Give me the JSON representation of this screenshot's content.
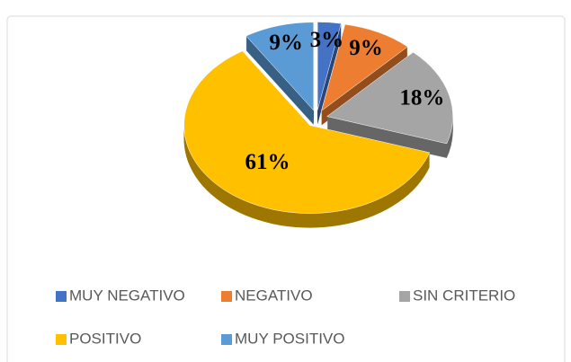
{
  "chart_data": {
    "type": "pie",
    "categories": [
      "MUY NEGATIVO",
      "NEGATIVO",
      "SIN CRITERIO",
      "POSITIVO",
      "MUY POSITIVO"
    ],
    "values": [
      3,
      9,
      18,
      61,
      9
    ],
    "value_labels": [
      "3%",
      "9%",
      "18%",
      "61%",
      "9%"
    ],
    "colors": [
      "#4472c4",
      "#ed7d31",
      "#a5a5a5",
      "#ffc000",
      "#5b9bd5"
    ],
    "legend": "bottom"
  }
}
